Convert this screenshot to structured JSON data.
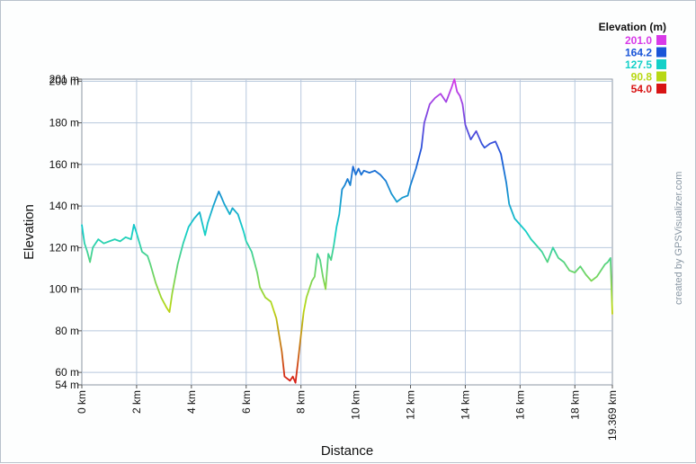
{
  "chart_data": {
    "type": "line",
    "xlabel": "Distance",
    "ylabel": "Elevation",
    "xlim": [
      0,
      19.369
    ],
    "ylim": [
      54,
      201
    ],
    "x_ticks": [
      0,
      2,
      4,
      6,
      8,
      10,
      12,
      14,
      16,
      18,
      19.369
    ],
    "x_tick_labels": [
      "0 km",
      "2 km",
      "4 km",
      "6 km",
      "8 km",
      "10 km",
      "12 km",
      "14 km",
      "16 km",
      "18 km",
      "19.369 km"
    ],
    "y_ticks": [
      54,
      60,
      80,
      100,
      120,
      140,
      160,
      180,
      200,
      201
    ],
    "y_tick_labels": [
      "54 m",
      "60 m",
      "80 m",
      "100 m",
      "120 m",
      "140 m",
      "160 m",
      "180 m",
      "200 m",
      "201 m"
    ],
    "grid": true,
    "legend": {
      "title": "Elevation (m)",
      "placement": "top-right",
      "entries": [
        {
          "label": "201.0",
          "color": "#d83ae8"
        },
        {
          "label": "164.2",
          "color": "#1a55d8"
        },
        {
          "label": "127.5",
          "color": "#14d0c8"
        },
        {
          "label": "90.8",
          "color": "#b8d814"
        },
        {
          "label": "54.0",
          "color": "#d81414"
        }
      ]
    },
    "credit": "created by GPSVisualizer.com",
    "colors": {
      "gradient": [
        "#d81414",
        "#b8d814",
        "#14d0c8",
        "#1a55d8",
        "#d83ae8"
      ],
      "grid": "#b8c8dd"
    },
    "x": [
      0,
      0.1,
      0.2,
      0.3,
      0.4,
      0.6,
      0.8,
      1.0,
      1.2,
      1.4,
      1.6,
      1.8,
      1.9,
      2.0,
      2.2,
      2.4,
      2.5,
      2.7,
      2.9,
      3.1,
      3.2,
      3.3,
      3.5,
      3.7,
      3.9,
      4.1,
      4.3,
      4.5,
      4.6,
      4.8,
      5.0,
      5.1,
      5.2,
      5.4,
      5.5,
      5.7,
      5.9,
      6.0,
      6.2,
      6.4,
      6.5,
      6.7,
      6.9,
      7.1,
      7.3,
      7.4,
      7.5,
      7.6,
      7.7,
      7.8,
      7.9,
      8.0,
      8.1,
      8.2,
      8.4,
      8.5,
      8.6,
      8.7,
      8.8,
      8.9,
      9.0,
      9.1,
      9.2,
      9.3,
      9.4,
      9.5,
      9.6,
      9.7,
      9.8,
      9.9,
      10.0,
      10.1,
      10.2,
      10.3,
      10.5,
      10.7,
      10.9,
      11.1,
      11.3,
      11.5,
      11.7,
      11.9,
      12.0,
      12.2,
      12.4,
      12.5,
      12.7,
      12.9,
      13.1,
      13.3,
      13.5,
      13.6,
      13.7,
      13.8,
      13.9,
      14.0,
      14.2,
      14.4,
      14.6,
      14.7,
      14.9,
      15.1,
      15.3,
      15.5,
      15.6,
      15.8,
      16.0,
      16.2,
      16.4,
      16.6,
      16.8,
      17.0,
      17.2,
      17.4,
      17.6,
      17.8,
      18.0,
      18.2,
      18.4,
      18.6,
      18.8,
      19.0,
      19.1,
      19.2,
      19.3,
      19.369
    ],
    "y": [
      131,
      122,
      118,
      113,
      120,
      124,
      122,
      123,
      124,
      123,
      125,
      124,
      131,
      127,
      118,
      116,
      112,
      103,
      96,
      91,
      89,
      98,
      112,
      122,
      130,
      134,
      137,
      126,
      132,
      140,
      147,
      144,
      141,
      136,
      139,
      136,
      128,
      123,
      118,
      108,
      101,
      96,
      94,
      86,
      70,
      58,
      57,
      56,
      58,
      55,
      66,
      78,
      89,
      96,
      104,
      106,
      117,
      114,
      106,
      100,
      117,
      114,
      121,
      130,
      136,
      148,
      150,
      153,
      150,
      159,
      155,
      158,
      155,
      157,
      156,
      157,
      155,
      152,
      146,
      142,
      144,
      145,
      150,
      158,
      168,
      180,
      189,
      192,
      194,
      190,
      197,
      201,
      195,
      193,
      189,
      179,
      172,
      176,
      170,
      168,
      170,
      171,
      165,
      151,
      141,
      134,
      131,
      128,
      124,
      121,
      118,
      113,
      120,
      115,
      113,
      109,
      108,
      111,
      107,
      104,
      106,
      110,
      112,
      113,
      115,
      88
    ]
  }
}
